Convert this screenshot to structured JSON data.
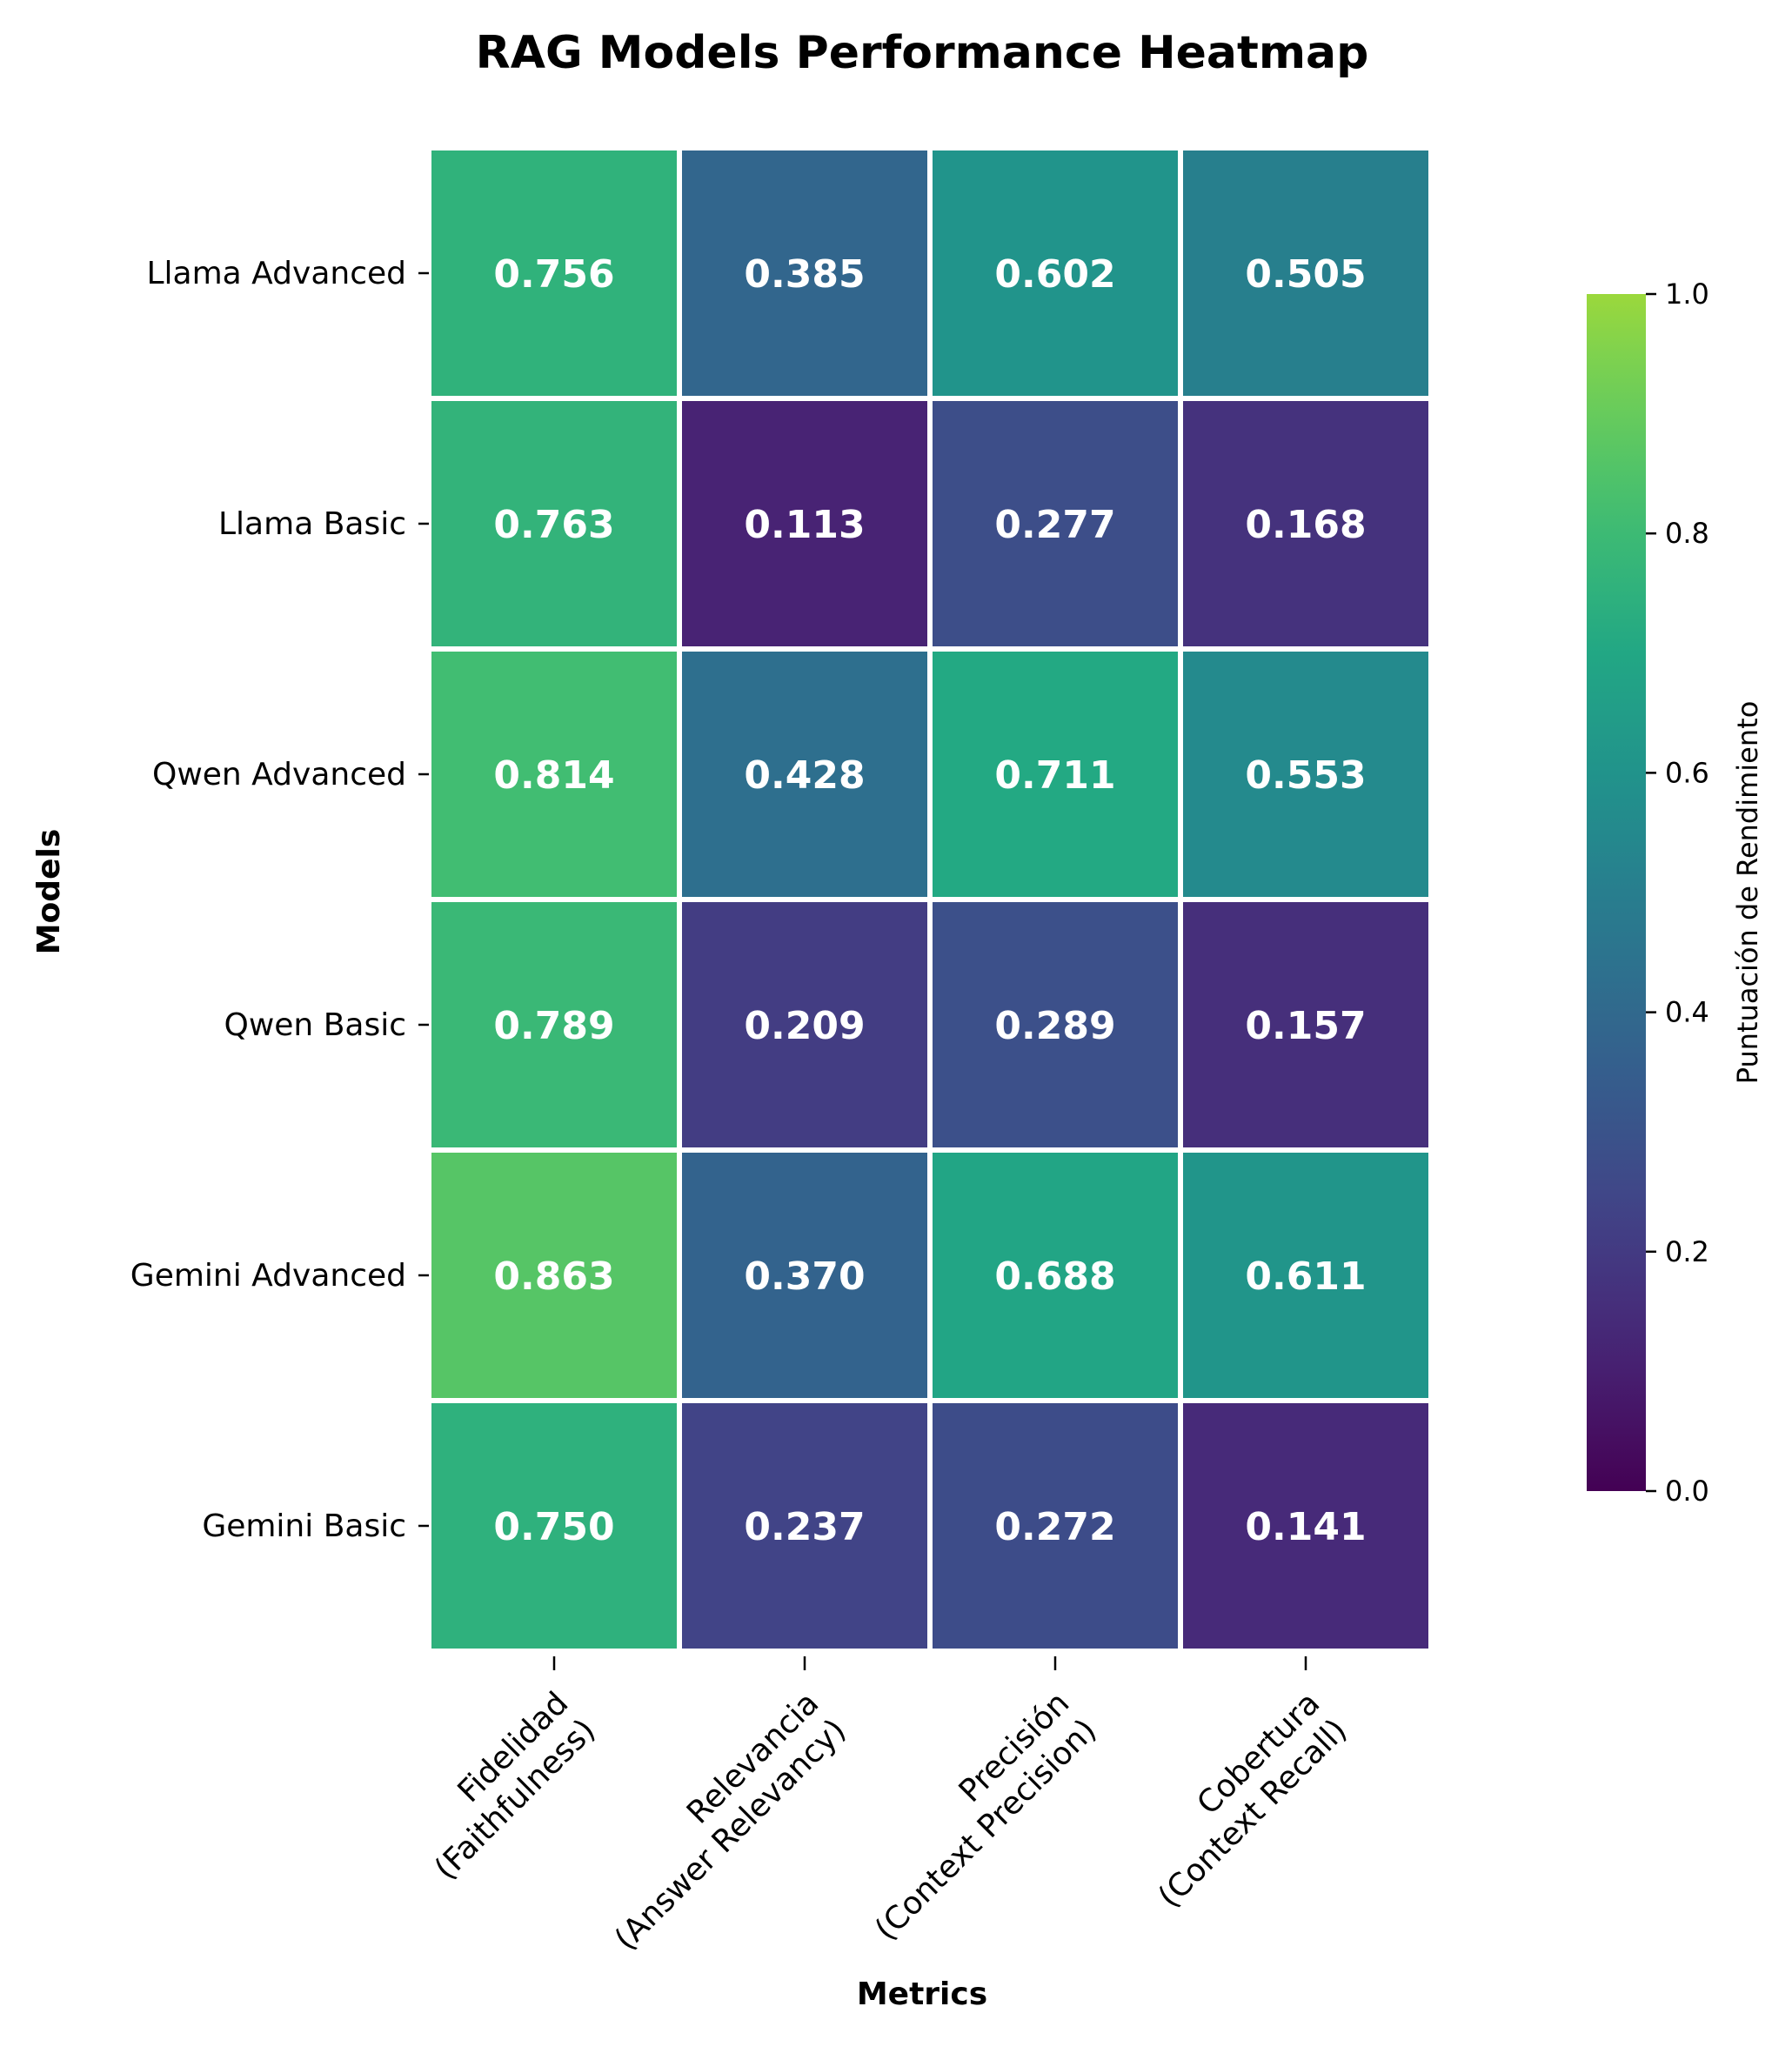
{
  "chart_data": {
    "type": "heatmap",
    "title": "RAG Models Performance Heatmap",
    "xlabel": "Metrics",
    "ylabel": "Models",
    "rows": [
      "Llama Advanced",
      "Llama Basic",
      "Qwen Advanced",
      "Qwen Basic",
      "Gemini Advanced",
      "Gemini Basic"
    ],
    "columns": [
      [
        "Fidelidad",
        "(Faithfulness)"
      ],
      [
        "Relevancia",
        "(Answer Relevancy)"
      ],
      [
        "Precisión",
        "(Context Precision)"
      ],
      [
        "Cobertura",
        "(Context Recall)"
      ]
    ],
    "values": [
      [
        0.756,
        0.385,
        0.602,
        0.505
      ],
      [
        0.763,
        0.113,
        0.277,
        0.168
      ],
      [
        0.814,
        0.428,
        0.711,
        0.553
      ],
      [
        0.789,
        0.209,
        0.289,
        0.157
      ],
      [
        0.863,
        0.37,
        0.688,
        0.611
      ],
      [
        0.75,
        0.237,
        0.272,
        0.141
      ]
    ],
    "colormap": "viridis",
    "color_range": [
      0.0,
      1.0
    ],
    "colorbar": {
      "label": "Puntuación de Rendimiento",
      "ticks": [
        0.0,
        0.2,
        0.4,
        0.6,
        0.8,
        1.0
      ],
      "tick_labels": [
        "0.0",
        "0.2",
        "0.4",
        "0.6",
        "0.8",
        "1.0"
      ]
    },
    "annotation_color": "#ffffff",
    "cell_border_color": "#ffffff"
  }
}
